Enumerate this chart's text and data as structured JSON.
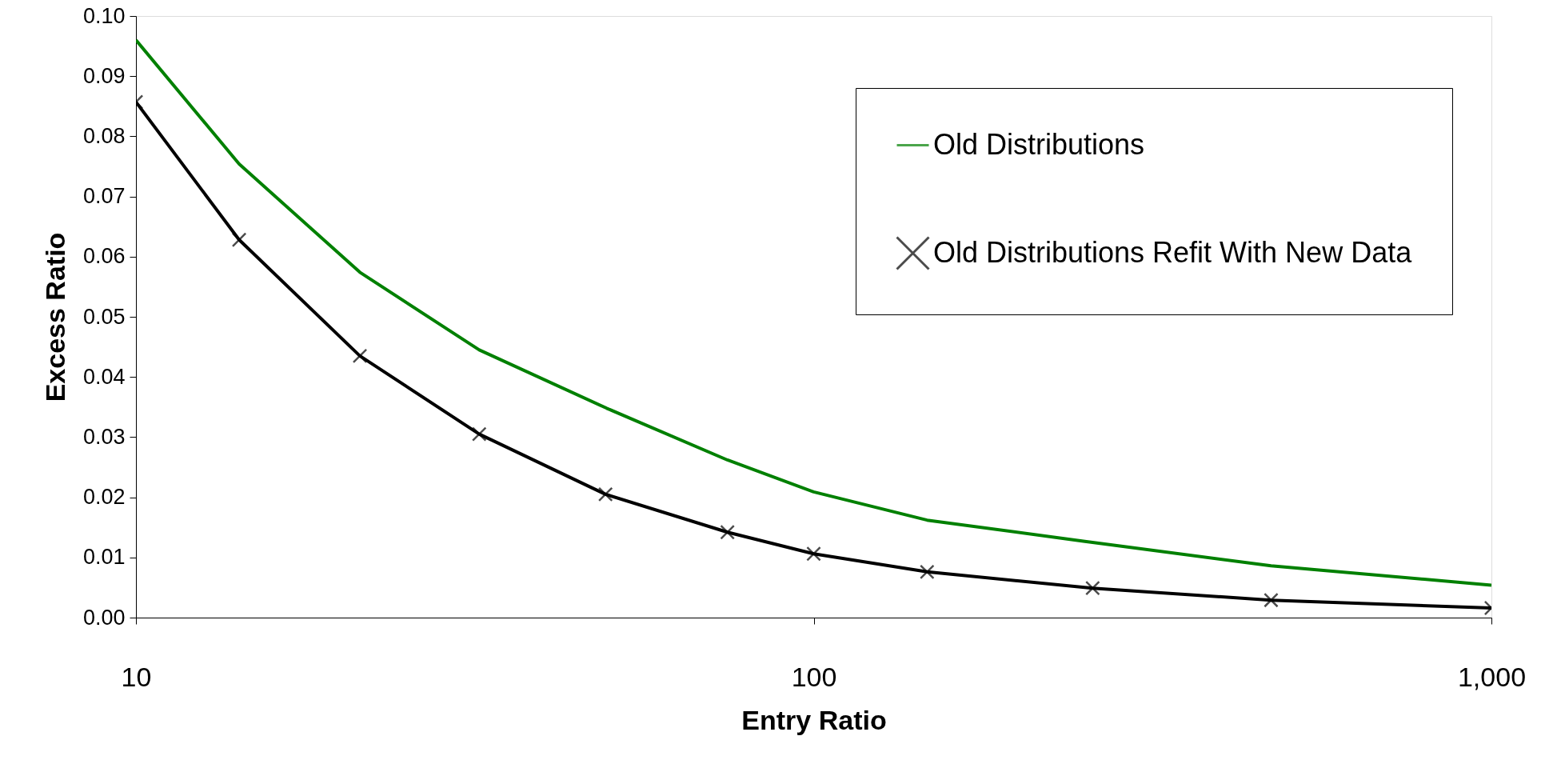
{
  "chart_data": {
    "type": "line",
    "xlabel": "Entry Ratio",
    "ylabel": "Excess Ratio",
    "log": "x",
    "grid": false,
    "legend": "top right",
    "xlim": [
      10,
      1000
    ],
    "xticks": [
      10,
      100,
      {
        "value": 1000,
        "label": "1,000"
      }
    ],
    "ylim": [
      0,
      0.1
    ],
    "yticks": [
      {
        "value": 0,
        "label": "0.00"
      },
      {
        "value": 0.01,
        "label": "0.01"
      },
      {
        "value": 0.02,
        "label": "0.02"
      },
      {
        "value": 0.03,
        "label": "0.03"
      },
      {
        "value": 0.04,
        "label": "0.04"
      },
      {
        "value": 0.05,
        "label": "0.05"
      },
      {
        "value": 0.06,
        "label": "0.06"
      },
      {
        "value": 0.07,
        "label": "0.07"
      },
      {
        "value": 0.08,
        "label": "0.08"
      },
      {
        "value": 0.09,
        "label": "0.09"
      },
      {
        "value": 0.1,
        "label": "0.10"
      }
    ],
    "series": [
      {
        "name": "Old Distributions",
        "color": "#008000",
        "marker": "none",
        "x": [
          10,
          14.2,
          21.4,
          32.1,
          49.5,
          74.6,
          100,
          147,
          250,
          473,
          1000
        ],
        "values": [
          0.096,
          0.0754,
          0.0574,
          0.0445,
          0.0348,
          0.0262,
          0.0209,
          0.0162,
          0.0127,
          0.0086,
          0.0054
        ]
      },
      {
        "name": "Old Distributions Refit With New Data",
        "color": "#000000",
        "marker": "cross",
        "x": [
          10,
          14.2,
          21.4,
          32.1,
          49.3,
          74.6,
          100,
          147,
          258,
          473,
          1000
        ],
        "values": [
          0.0857,
          0.0628,
          0.0435,
          0.0305,
          0.0205,
          0.0142,
          0.0106,
          0.0076,
          0.0049,
          0.0029,
          0.0016
        ]
      }
    ]
  }
}
